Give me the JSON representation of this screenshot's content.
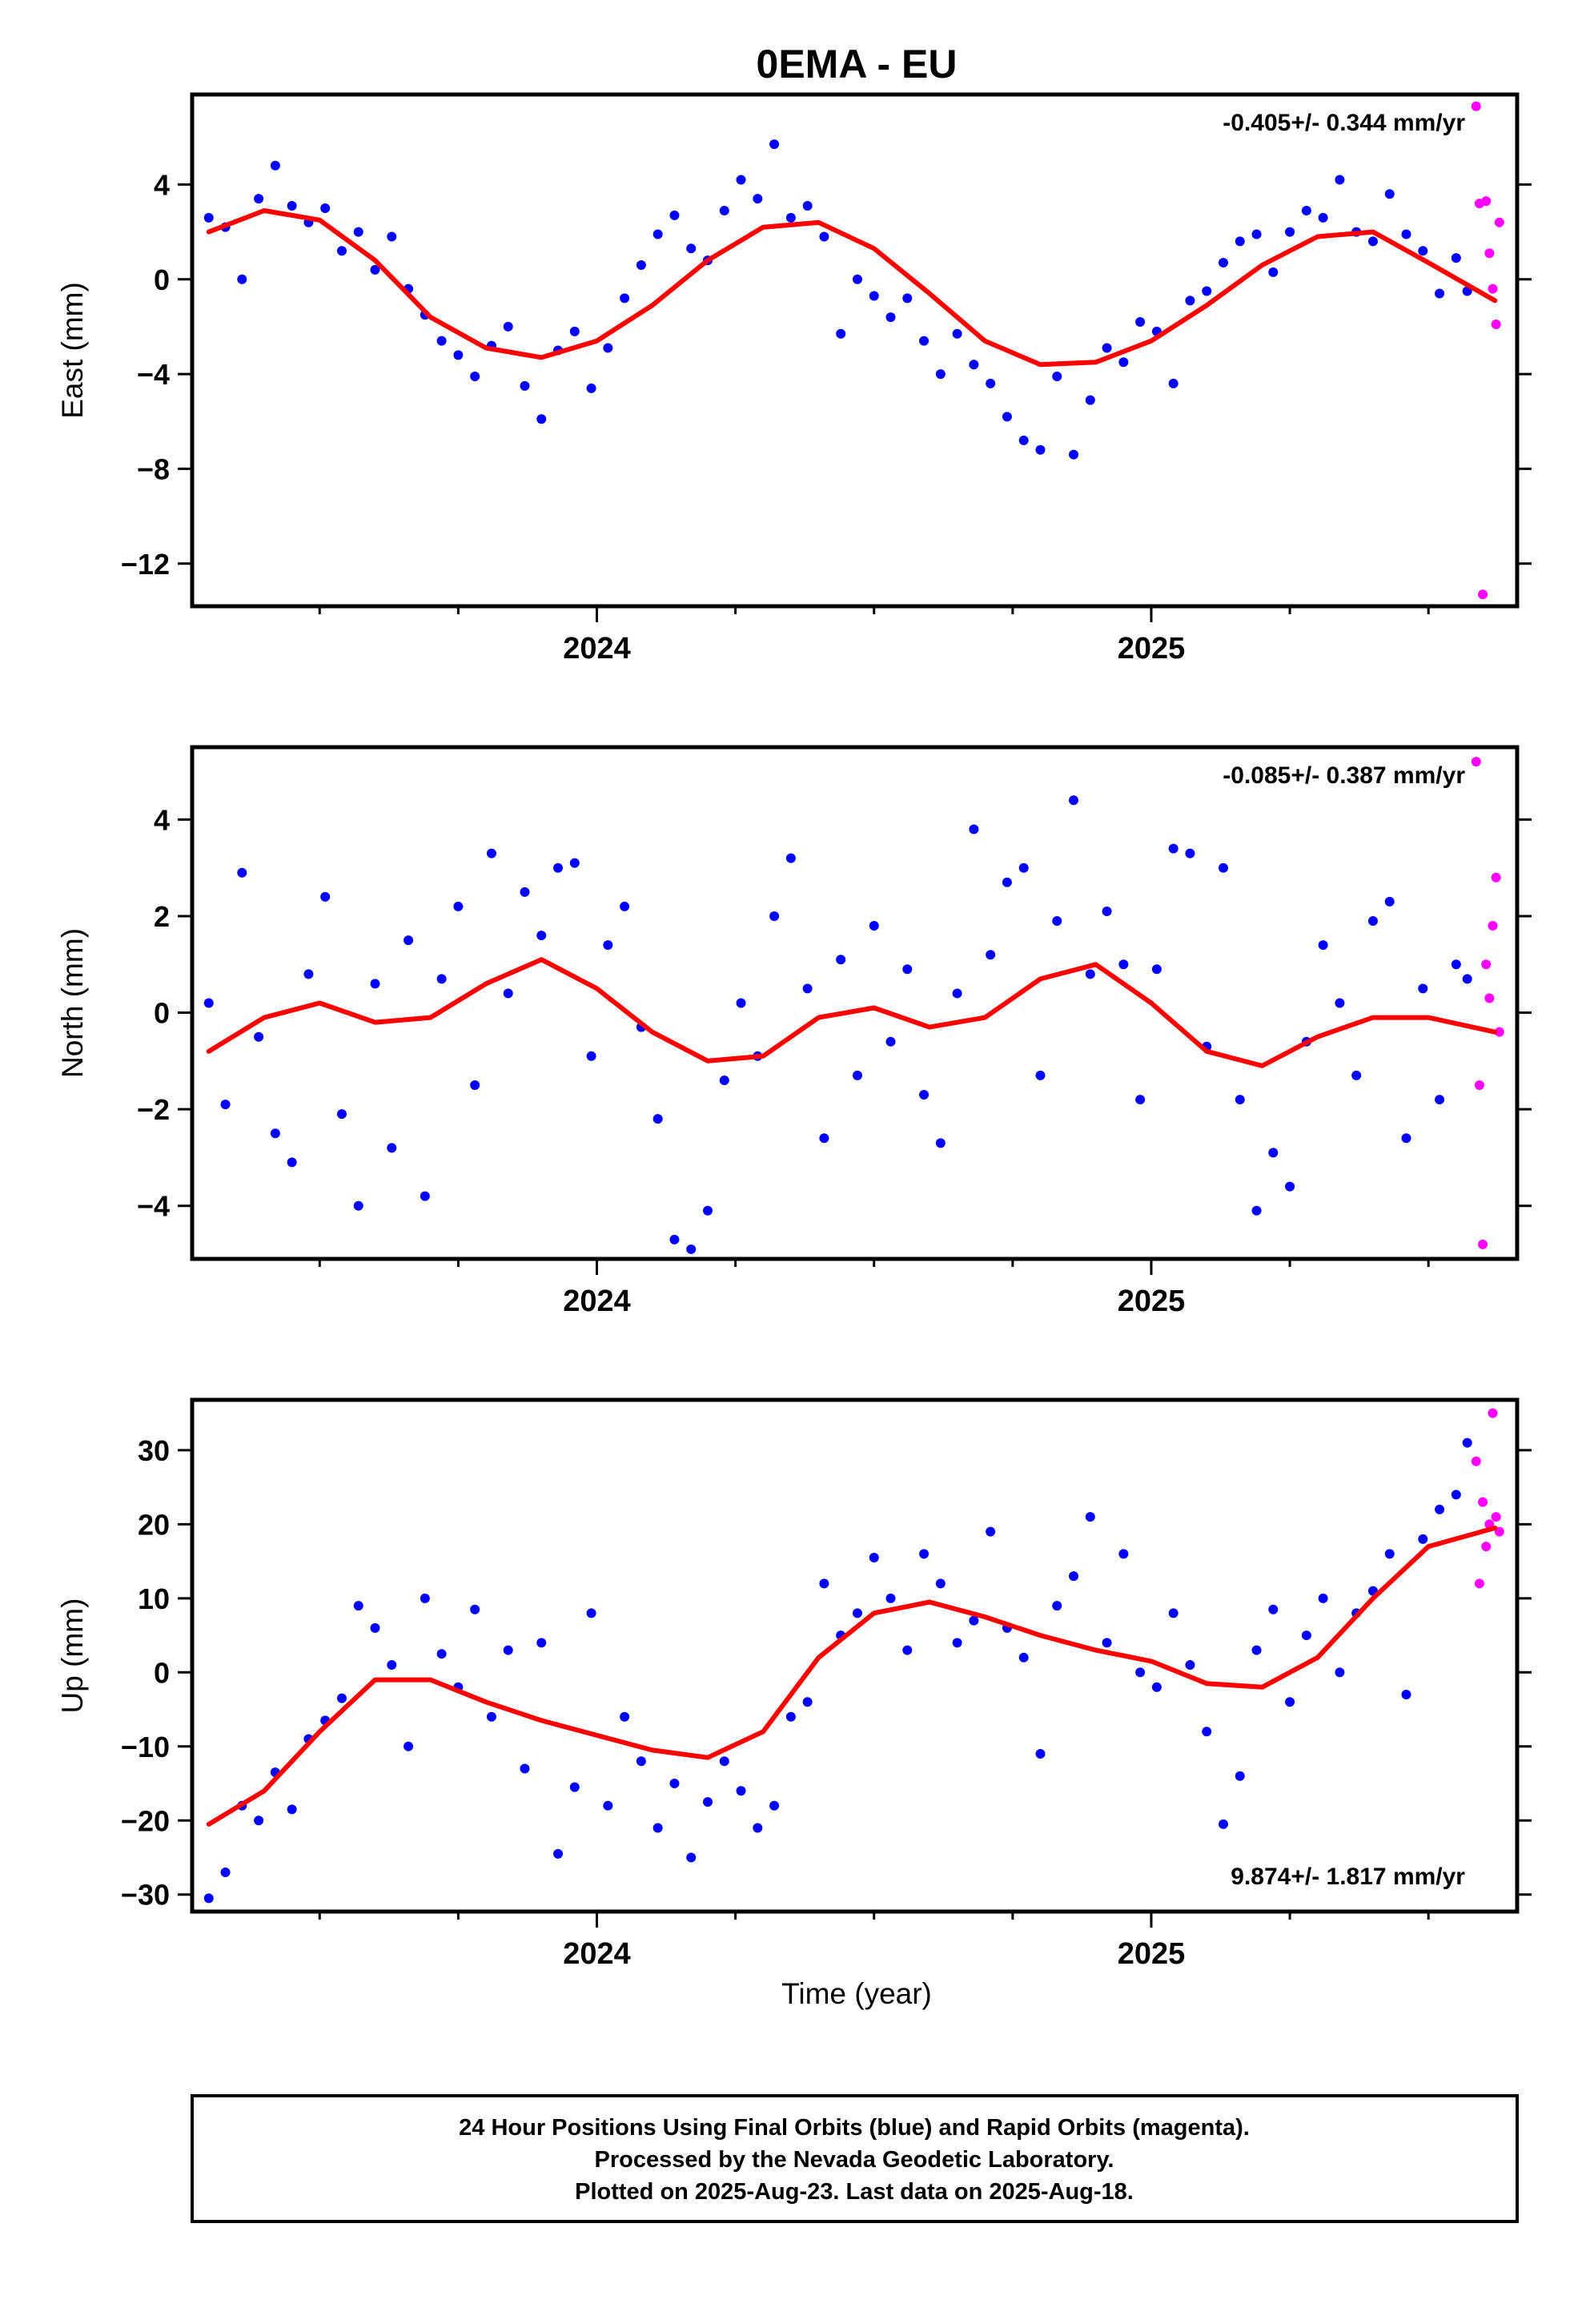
{
  "title": "0EMA - EU",
  "xlabel": "Time (year)",
  "footer": {
    "line1": "24 Hour Positions Using Final Orbits (blue) and Rapid Orbits (magenta).",
    "line2": "Processed by the Nevada Geodetic Laboratory.",
    "line3": "Plotted on 2025-Aug-23. Last data on 2025-Aug-18."
  },
  "colors": {
    "final": "#0000ff",
    "rapid": "#ff00ff",
    "model": "#ff0000",
    "axis": "#000000"
  },
  "chart_data": [
    {
      "type": "scatter",
      "name": "east",
      "ylabel": "East (mm)",
      "rate": "-0.405+/- 0.344 mm/yr",
      "xlim": [
        2023.27,
        2025.66
      ],
      "ylim": [
        -13.8,
        7.8
      ],
      "x_ticks": [
        2024,
        2025
      ],
      "x_ticks_labels": [
        "2024",
        "2025"
      ],
      "y_ticks": [
        4,
        0,
        -4,
        -8,
        -12
      ],
      "y_tick_labels": [
        "4",
        "0",
        "−4",
        "−8",
        "−12"
      ],
      "model": {
        "name": "Model fit",
        "x": [
          2023.3,
          2023.4,
          2023.5,
          2023.6,
          2023.7,
          2023.8,
          2023.9,
          2024.0,
          2024.1,
          2024.2,
          2024.3,
          2024.4,
          2024.5,
          2024.6,
          2024.7,
          2024.8,
          2024.9,
          2025.0,
          2025.1,
          2025.2,
          2025.3,
          2025.4,
          2025.5,
          2025.62
        ],
        "y": [
          2.0,
          2.9,
          2.5,
          0.8,
          -1.6,
          -2.9,
          -3.3,
          -2.6,
          -1.1,
          0.8,
          2.2,
          2.4,
          1.3,
          -0.6,
          -2.6,
          -3.6,
          -3.5,
          -2.6,
          -1.1,
          0.6,
          1.8,
          2.0,
          0.7,
          -0.9
        ]
      },
      "series": [
        {
          "name": "Final orbits",
          "color": "#0000ff",
          "x": [
            2023.3,
            2023.33,
            2023.36,
            2023.39,
            2023.42,
            2023.45,
            2023.48,
            2023.51,
            2023.54,
            2023.57,
            2023.6,
            2023.63,
            2023.66,
            2023.69,
            2023.72,
            2023.75,
            2023.78,
            2023.81,
            2023.84,
            2023.87,
            2023.9,
            2023.93,
            2023.96,
            2023.99,
            2024.02,
            2024.05,
            2024.08,
            2024.11,
            2024.14,
            2024.17,
            2024.2,
            2024.23,
            2024.26,
            2024.29,
            2024.32,
            2024.35,
            2024.38,
            2024.41,
            2024.44,
            2024.47,
            2024.5,
            2024.53,
            2024.56,
            2024.59,
            2024.62,
            2024.65,
            2024.68,
            2024.71,
            2024.74,
            2024.77,
            2024.8,
            2024.83,
            2024.86,
            2024.89,
            2024.92,
            2024.95,
            2024.98,
            2025.01,
            2025.04,
            2025.07,
            2025.1,
            2025.13,
            2025.16,
            2025.19,
            2025.22,
            2025.25,
            2025.28,
            2025.31,
            2025.34,
            2025.37,
            2025.4,
            2025.43,
            2025.46,
            2025.49,
            2025.52,
            2025.55,
            2025.57
          ],
          "y": [
            2.6,
            2.2,
            0.0,
            3.4,
            4.8,
            3.1,
            2.4,
            3.0,
            1.2,
            2.0,
            0.4,
            1.8,
            -0.4,
            -1.5,
            -2.6,
            -3.2,
            -4.1,
            -2.8,
            -2.0,
            -4.5,
            -5.9,
            -3.0,
            -2.2,
            -4.6,
            -2.9,
            -0.8,
            0.6,
            1.9,
            2.7,
            1.3,
            0.8,
            2.9,
            4.2,
            3.4,
            5.7,
            2.6,
            3.1,
            1.8,
            -2.3,
            0.0,
            -0.7,
            -1.6,
            -0.8,
            -2.6,
            -4.0,
            -2.3,
            -3.6,
            -4.4,
            -5.8,
            -6.8,
            -7.2,
            -4.1,
            -7.4,
            -5.1,
            -2.9,
            -3.5,
            -1.8,
            -2.2,
            -4.4,
            -0.9,
            -0.5,
            0.7,
            1.6,
            1.9,
            0.3,
            2.0,
            2.9,
            2.6,
            4.2,
            2.0,
            1.6,
            3.6,
            1.9,
            1.2,
            -0.6,
            0.9,
            -0.5
          ]
        },
        {
          "name": "Rapid orbits",
          "color": "#ff00ff",
          "x": [
            2025.586,
            2025.592,
            2025.598,
            2025.604,
            2025.61,
            2025.616,
            2025.622,
            2025.628
          ],
          "y": [
            7.3,
            3.2,
            -13.3,
            3.3,
            1.1,
            -0.4,
            -1.9,
            2.4
          ]
        }
      ]
    },
    {
      "type": "scatter",
      "name": "north",
      "ylabel": "North (mm)",
      "rate": "-0.085+/- 0.387 mm/yr",
      "xlim": [
        2023.27,
        2025.66
      ],
      "ylim": [
        -5.1,
        5.5
      ],
      "x_ticks": [
        2024,
        2025
      ],
      "x_ticks_labels": [
        "2024",
        "2025"
      ],
      "y_ticks": [
        4,
        2,
        0,
        -2,
        -4
      ],
      "y_tick_labels": [
        "4",
        "2",
        "0",
        "−2",
        "−4"
      ],
      "model": {
        "name": "Model fit",
        "x": [
          2023.3,
          2023.4,
          2023.5,
          2023.6,
          2023.7,
          2023.8,
          2023.9,
          2024.0,
          2024.1,
          2024.2,
          2024.3,
          2024.4,
          2024.5,
          2024.6,
          2024.7,
          2024.8,
          2024.9,
          2025.0,
          2025.1,
          2025.2,
          2025.3,
          2025.4,
          2025.5,
          2025.62
        ],
        "y": [
          -0.8,
          -0.1,
          0.2,
          -0.2,
          -0.1,
          0.6,
          1.1,
          0.5,
          -0.4,
          -1.0,
          -0.9,
          -0.1,
          0.1,
          -0.3,
          -0.1,
          0.7,
          1.0,
          0.2,
          -0.8,
          -1.1,
          -0.5,
          -0.1,
          -0.1,
          -0.4
        ]
      },
      "series": [
        {
          "name": "Final orbits",
          "color": "#0000ff",
          "x": [
            2023.3,
            2023.33,
            2023.36,
            2023.39,
            2023.42,
            2023.45,
            2023.48,
            2023.51,
            2023.54,
            2023.57,
            2023.6,
            2023.63,
            2023.66,
            2023.69,
            2023.72,
            2023.75,
            2023.78,
            2023.81,
            2023.84,
            2023.87,
            2023.9,
            2023.93,
            2023.96,
            2023.99,
            2024.02,
            2024.05,
            2024.08,
            2024.11,
            2024.14,
            2024.17,
            2024.2,
            2024.23,
            2024.26,
            2024.29,
            2024.32,
            2024.35,
            2024.38,
            2024.41,
            2024.44,
            2024.47,
            2024.5,
            2024.53,
            2024.56,
            2024.59,
            2024.62,
            2024.65,
            2024.68,
            2024.71,
            2024.74,
            2024.77,
            2024.8,
            2024.83,
            2024.86,
            2024.89,
            2024.92,
            2024.95,
            2024.98,
            2025.01,
            2025.04,
            2025.07,
            2025.1,
            2025.13,
            2025.16,
            2025.19,
            2025.22,
            2025.25,
            2025.28,
            2025.31,
            2025.34,
            2025.37,
            2025.4,
            2025.43,
            2025.46,
            2025.49,
            2025.52,
            2025.55,
            2025.57
          ],
          "y": [
            0.2,
            -1.9,
            2.9,
            -0.5,
            -2.5,
            -3.1,
            0.8,
            2.4,
            -2.1,
            -4.0,
            0.6,
            -2.8,
            1.5,
            -3.8,
            0.7,
            2.2,
            -1.5,
            3.3,
            0.4,
            2.5,
            1.6,
            3.0,
            3.1,
            -0.9,
            1.4,
            2.2,
            -0.3,
            -2.2,
            -4.7,
            -4.9,
            -4.1,
            -1.4,
            0.2,
            -0.9,
            2.0,
            3.2,
            0.5,
            -2.6,
            1.1,
            -1.3,
            1.8,
            -0.6,
            0.9,
            -1.7,
            -2.7,
            0.4,
            3.8,
            1.2,
            2.7,
            3.0,
            -1.3,
            1.9,
            4.4,
            0.8,
            2.1,
            1.0,
            -1.8,
            0.9,
            3.4,
            3.3,
            -0.7,
            3.0,
            -1.8,
            -4.1,
            -2.9,
            -3.6,
            -0.6,
            1.4,
            0.2,
            -1.3,
            1.9,
            2.3,
            -2.6,
            0.5,
            -1.8,
            1.0,
            0.7
          ]
        },
        {
          "name": "Rapid orbits",
          "color": "#ff00ff",
          "x": [
            2025.586,
            2025.592,
            2025.598,
            2025.604,
            2025.61,
            2025.616,
            2025.622,
            2025.628
          ],
          "y": [
            5.2,
            -1.5,
            -4.8,
            1.0,
            0.3,
            1.8,
            2.8,
            -0.4
          ]
        }
      ]
    },
    {
      "type": "scatter",
      "name": "up",
      "ylabel": "Up (mm)",
      "rate": "9.874+/- 1.817 mm/yr",
      "xlim": [
        2023.27,
        2025.66
      ],
      "ylim": [
        -32.3,
        36.8
      ],
      "x_ticks": [
        2024,
        2025
      ],
      "x_ticks_labels": [
        "2024",
        "2025"
      ],
      "y_ticks": [
        30,
        20,
        10,
        0,
        -10,
        -20,
        -30
      ],
      "y_tick_labels": [
        "30",
        "20",
        "10",
        "0",
        "−10",
        "−20",
        "−30"
      ],
      "model": {
        "name": "Model fit",
        "x": [
          2023.3,
          2023.4,
          2023.5,
          2023.6,
          2023.7,
          2023.8,
          2023.9,
          2024.0,
          2024.1,
          2024.2,
          2024.3,
          2024.4,
          2024.5,
          2024.6,
          2024.7,
          2024.8,
          2024.9,
          2025.0,
          2025.1,
          2025.2,
          2025.3,
          2025.4,
          2025.5,
          2025.62
        ],
        "y": [
          -20.5,
          -16.0,
          -8.0,
          -1.0,
          -1.0,
          -4.0,
          -6.5,
          -8.5,
          -10.5,
          -11.5,
          -8.0,
          2.0,
          8.0,
          9.5,
          7.5,
          5.0,
          3.0,
          1.5,
          -1.5,
          -2.0,
          2.0,
          10.0,
          17.0,
          19.5
        ]
      },
      "series": [
        {
          "name": "Final orbits",
          "color": "#0000ff",
          "x": [
            2023.3,
            2023.33,
            2023.36,
            2023.39,
            2023.42,
            2023.45,
            2023.48,
            2023.51,
            2023.54,
            2023.57,
            2023.6,
            2023.63,
            2023.66,
            2023.69,
            2023.72,
            2023.75,
            2023.78,
            2023.81,
            2023.84,
            2023.87,
            2023.9,
            2023.93,
            2023.96,
            2023.99,
            2024.02,
            2024.05,
            2024.08,
            2024.11,
            2024.14,
            2024.17,
            2024.2,
            2024.23,
            2024.26,
            2024.29,
            2024.32,
            2024.35,
            2024.38,
            2024.41,
            2024.44,
            2024.47,
            2024.5,
            2024.53,
            2024.56,
            2024.59,
            2024.62,
            2024.65,
            2024.68,
            2024.71,
            2024.74,
            2024.77,
            2024.8,
            2024.83,
            2024.86,
            2024.89,
            2024.92,
            2024.95,
            2024.98,
            2025.01,
            2025.04,
            2025.07,
            2025.1,
            2025.13,
            2025.16,
            2025.19,
            2025.22,
            2025.25,
            2025.28,
            2025.31,
            2025.34,
            2025.37,
            2025.4,
            2025.43,
            2025.46,
            2025.49,
            2025.52,
            2025.55,
            2025.57
          ],
          "y": [
            -30.5,
            -27.0,
            -18.0,
            -20.0,
            -13.5,
            -18.5,
            -9.0,
            -6.5,
            -3.5,
            9.0,
            6.0,
            1.0,
            -10.0,
            10.0,
            2.5,
            -2.0,
            8.5,
            -6.0,
            3.0,
            -13.0,
            4.0,
            -24.5,
            -15.5,
            8.0,
            -18.0,
            -6.0,
            -12.0,
            -21.0,
            -15.0,
            -25.0,
            -17.5,
            -12.0,
            -16.0,
            -21.0,
            -18.0,
            -6.0,
            -4.0,
            12.0,
            5.0,
            8.0,
            15.5,
            10.0,
            3.0,
            16.0,
            12.0,
            4.0,
            7.0,
            19.0,
            6.0,
            2.0,
            -11.0,
            9.0,
            13.0,
            21.0,
            4.0,
            16.0,
            0.0,
            -2.0,
            8.0,
            1.0,
            -8.0,
            -20.5,
            -14.0,
            3.0,
            8.5,
            -4.0,
            5.0,
            10.0,
            0.0,
            8.0,
            11.0,
            16.0,
            -3.0,
            18.0,
            22.0,
            24.0,
            31.0
          ]
        },
        {
          "name": "Rapid orbits",
          "color": "#ff00ff",
          "x": [
            2025.586,
            2025.592,
            2025.598,
            2025.604,
            2025.61,
            2025.616,
            2025.622,
            2025.628
          ],
          "y": [
            28.5,
            12.0,
            23.0,
            17.0,
            20.0,
            35.0,
            21.0,
            19.0
          ]
        }
      ]
    }
  ]
}
